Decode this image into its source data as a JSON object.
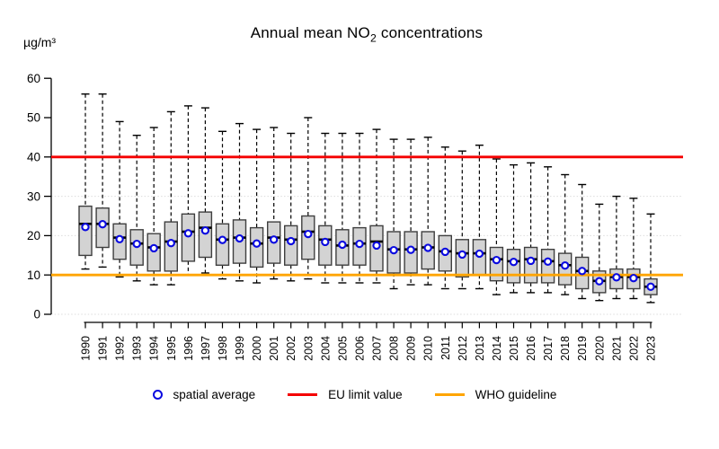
{
  "header": {
    "title_prefix": "Annual mean NO",
    "title_sub": "2",
    "title_suffix": " concentrations",
    "unit_label": "µg/m³"
  },
  "legend": {
    "items": [
      {
        "label": "spatial average",
        "marker": "blue-open-circle",
        "color": "#0a0ae0"
      },
      {
        "label": "EU limit value",
        "marker": "red-line",
        "color": "#f40000"
      },
      {
        "label": "WHO guideline",
        "marker": "orange-line",
        "color": "#ffa500"
      }
    ]
  },
  "chart_data": {
    "type": "boxplot",
    "title": "Annual mean NO2 concentrations",
    "ylabel": "µg/m³",
    "ylim": [
      0,
      60
    ],
    "yticks": [
      0,
      10,
      20,
      30,
      40,
      50,
      60
    ],
    "gridlines_at": [
      0,
      10,
      20,
      30,
      40
    ],
    "grid": "horizontal dotted",
    "legend_position": "bottom",
    "x_tick_label_rotation": -90,
    "reference_lines": [
      {
        "name": "EU limit value",
        "value": 40,
        "color": "#f40000"
      },
      {
        "name": "WHO guideline",
        "value": 10,
        "color": "#ffa500"
      }
    ],
    "colors": {
      "box_fill": "#d3d3d3",
      "box_border": "#3f3f3f",
      "median": "#000000",
      "whisker": "#000000",
      "mean_marker_stroke": "#0a0ae0",
      "mean_marker_fill": "#ffffff",
      "grid": "#dcdcdc",
      "axis": "#000000"
    },
    "boxes": [
      {
        "year": "1990",
        "low": 11.5,
        "q1": 15,
        "median": 23,
        "q3": 27.5,
        "high": 56,
        "mean": 22.2
      },
      {
        "year": "1991",
        "low": 12,
        "q1": 17,
        "median": 23,
        "q3": 27,
        "high": 56,
        "mean": 22.9
      },
      {
        "year": "1992",
        "low": 9.5,
        "q1": 14,
        "median": 19.5,
        "q3": 23,
        "high": 49,
        "mean": 19.1
      },
      {
        "year": "1993",
        "low": 8.5,
        "q1": 12.5,
        "median": 18,
        "q3": 21.5,
        "high": 45.5,
        "mean": 17.9
      },
      {
        "year": "1994",
        "low": 7.5,
        "q1": 11,
        "median": 17,
        "q3": 20.5,
        "high": 47.5,
        "mean": 16.8
      },
      {
        "year": "1995",
        "low": 7.5,
        "q1": 11,
        "median": 18.5,
        "q3": 23.5,
        "high": 51.5,
        "mean": 18.1
      },
      {
        "year": "1996",
        "low": 10,
        "q1": 13.5,
        "median": 21,
        "q3": 25.5,
        "high": 53,
        "mean": 20.6
      },
      {
        "year": "1997",
        "low": 10.5,
        "q1": 14.5,
        "median": 22,
        "q3": 26,
        "high": 52.5,
        "mean": 21.3
      },
      {
        "year": "1998",
        "low": 9,
        "q1": 12.5,
        "median": 19,
        "q3": 23,
        "high": 46.5,
        "mean": 18.9
      },
      {
        "year": "1999",
        "low": 8.5,
        "q1": 13,
        "median": 19.5,
        "q3": 24,
        "high": 48.5,
        "mean": 19.3
      },
      {
        "year": "2000",
        "low": 8,
        "q1": 12,
        "median": 18,
        "q3": 22,
        "high": 47,
        "mean": 18.0
      },
      {
        "year": "2001",
        "low": 9,
        "q1": 13,
        "median": 19.5,
        "q3": 23.5,
        "high": 47.5,
        "mean": 19.0
      },
      {
        "year": "2002",
        "low": 8.5,
        "q1": 12.5,
        "median": 19,
        "q3": 22.5,
        "high": 46,
        "mean": 18.6
      },
      {
        "year": "2003",
        "low": 9,
        "q1": 14,
        "median": 21,
        "q3": 25,
        "high": 50,
        "mean": 20.4
      },
      {
        "year": "2004",
        "low": 8,
        "q1": 12.5,
        "median": 19,
        "q3": 22.5,
        "high": 46,
        "mean": 18.4
      },
      {
        "year": "2005",
        "low": 8,
        "q1": 12.5,
        "median": 17.5,
        "q3": 21.5,
        "high": 46,
        "mean": 17.7
      },
      {
        "year": "2006",
        "low": 8,
        "q1": 12.5,
        "median": 18,
        "q3": 22,
        "high": 46,
        "mean": 17.9
      },
      {
        "year": "2007",
        "low": 8,
        "q1": 11,
        "median": 18.5,
        "q3": 22.5,
        "high": 47,
        "mean": 17.5
      },
      {
        "year": "2008",
        "low": 6.5,
        "q1": 10.5,
        "median": 16.5,
        "q3": 21,
        "high": 44.5,
        "mean": 16.3
      },
      {
        "year": "2009",
        "low": 7.5,
        "q1": 10.5,
        "median": 16.5,
        "q3": 21,
        "high": 44.5,
        "mean": 16.4
      },
      {
        "year": "2010",
        "low": 7.5,
        "q1": 11.5,
        "median": 17,
        "q3": 21,
        "high": 45,
        "mean": 16.9
      },
      {
        "year": "2011",
        "low": 6.5,
        "q1": 11,
        "median": 16,
        "q3": 20,
        "high": 42.5,
        "mean": 15.9
      },
      {
        "year": "2012",
        "low": 6.5,
        "q1": 9.5,
        "median": 15.5,
        "q3": 19,
        "high": 41.5,
        "mean": 15.2
      },
      {
        "year": "2013",
        "low": 6.5,
        "q1": 10,
        "median": 15.5,
        "q3": 19,
        "high": 43,
        "mean": 15.4
      },
      {
        "year": "2014",
        "low": 5,
        "q1": 8.5,
        "median": 14,
        "q3": 17,
        "high": 39.5,
        "mean": 13.8
      },
      {
        "year": "2015",
        "low": 5.5,
        "q1": 8,
        "median": 13.5,
        "q3": 16.5,
        "high": 38,
        "mean": 13.3
      },
      {
        "year": "2016",
        "low": 5.5,
        "q1": 8,
        "median": 14,
        "q3": 17,
        "high": 38.5,
        "mean": 13.6
      },
      {
        "year": "2017",
        "low": 5.5,
        "q1": 8,
        "median": 13.5,
        "q3": 16.5,
        "high": 37.5,
        "mean": 13.4
      },
      {
        "year": "2018",
        "low": 5,
        "q1": 7.5,
        "median": 12.5,
        "q3": 15.5,
        "high": 35.5,
        "mean": 12.4
      },
      {
        "year": "2019",
        "low": 4,
        "q1": 6.5,
        "median": 11,
        "q3": 14.5,
        "high": 33,
        "mean": 11.0
      },
      {
        "year": "2020",
        "low": 3.5,
        "q1": 5.5,
        "median": 8.5,
        "q3": 11,
        "high": 28,
        "mean": 8.4
      },
      {
        "year": "2021",
        "low": 4,
        "q1": 6.5,
        "median": 9.5,
        "q3": 11.5,
        "high": 30,
        "mean": 9.4
      },
      {
        "year": "2022",
        "low": 4,
        "q1": 6.5,
        "median": 9.5,
        "q3": 11.5,
        "high": 29.5,
        "mean": 9.2
      },
      {
        "year": "2023",
        "low": 3,
        "q1": 5,
        "median": 7,
        "q3": 9,
        "high": 25.5,
        "mean": 7.0
      }
    ]
  }
}
